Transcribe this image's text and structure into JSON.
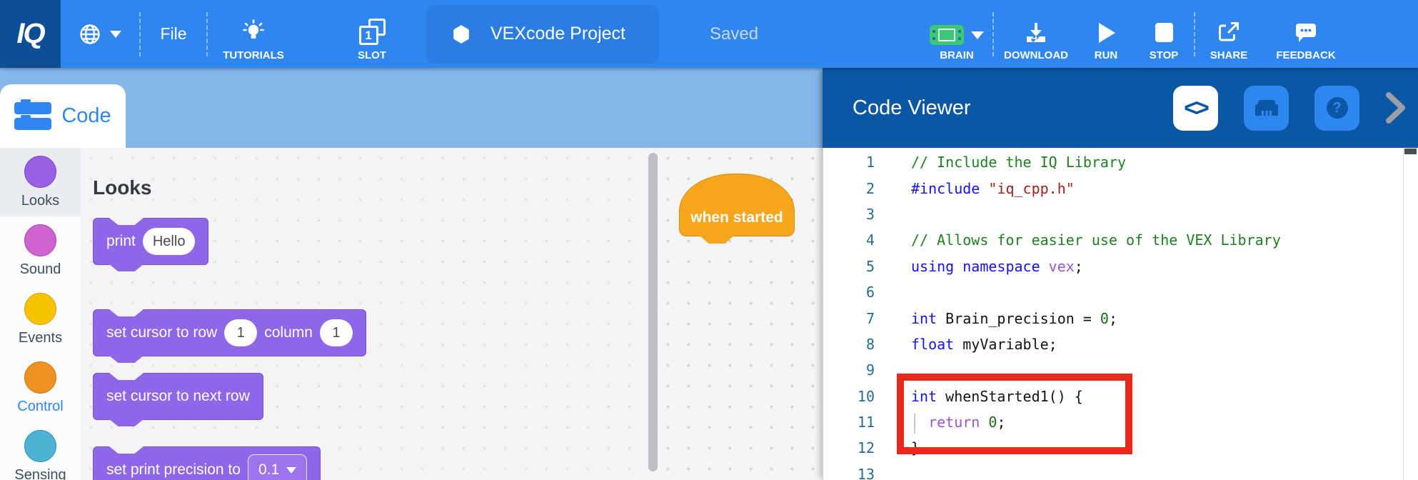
{
  "toolbar": {
    "logo": "IQ",
    "file_label": "File",
    "tutorials_label": "TUTORIALS",
    "slot_number": "1",
    "slot_label": "SLOT",
    "project_name": "VEXcode Project",
    "saved_label": "Saved",
    "brain_label": "BRAIN",
    "download_label": "DOWNLOAD",
    "run_label": "RUN",
    "stop_label": "STOP",
    "share_label": "SHARE",
    "feedback_label": "FEEDBACK"
  },
  "tabs": {
    "code_label": "Code"
  },
  "sidebar": {
    "categories": [
      {
        "label": "Looks",
        "fill": "#9b5fe6",
        "border": "#7e49c9",
        "selected": true,
        "label_color": "#3d4f5c"
      },
      {
        "label": "Sound",
        "fill": "#cf63cf",
        "border": "#b044b0",
        "selected": false,
        "label_color": "#3d4f5c"
      },
      {
        "label": "Events",
        "fill": "#f5c300",
        "border": "#d9a400",
        "selected": false,
        "label_color": "#3d4f5c"
      },
      {
        "label": "Control",
        "fill": "#f09020",
        "border": "#cc7a14",
        "selected": false,
        "label_color": "#2e86f0"
      },
      {
        "label": "Sensing",
        "fill": "#4cb3d4",
        "border": "#2e93b8",
        "selected": false,
        "label_color": "#3d4f5c"
      }
    ]
  },
  "palette": {
    "header": "Looks",
    "blocks": [
      {
        "name": "print-block",
        "segments": [
          {
            "text": "print"
          },
          {
            "input": "Hello"
          }
        ]
      },
      {
        "name": "set-cursor-row-column-block",
        "segments": [
          {
            "text": "set cursor to row"
          },
          {
            "input": "1"
          },
          {
            "text": "column"
          },
          {
            "input": "1"
          }
        ]
      },
      {
        "name": "set-cursor-next-row-block",
        "segments": [
          {
            "text": "set cursor to next row"
          }
        ]
      },
      {
        "name": "set-print-precision-block",
        "segments": [
          {
            "text": "set print precision to"
          },
          {
            "dropdown": "0.1"
          }
        ]
      }
    ]
  },
  "workspace": {
    "hat_block_label": "when started"
  },
  "code_viewer": {
    "title": "Code Viewer",
    "code_button_glyph": "<>",
    "help_glyph": "?",
    "highlighted_lines": "10-12",
    "lines": [
      {
        "n": "1",
        "tokens": [
          {
            "t": "c",
            "v": "// Include the IQ Library"
          }
        ]
      },
      {
        "n": "2",
        "tokens": [
          {
            "t": "k",
            "v": "#include "
          },
          {
            "t": "s",
            "v": "\"iq_cpp.h\""
          }
        ]
      },
      {
        "n": "3",
        "tokens": []
      },
      {
        "n": "4",
        "tokens": [
          {
            "t": "c",
            "v": "// Allows for easier use of the VEX Library"
          }
        ]
      },
      {
        "n": "5",
        "tokens": [
          {
            "t": "k",
            "v": "using namespace "
          },
          {
            "t": "p",
            "v": "vex"
          },
          {
            "t": "d",
            "v": ";"
          }
        ]
      },
      {
        "n": "6",
        "tokens": []
      },
      {
        "n": "7",
        "tokens": [
          {
            "t": "k",
            "v": "int "
          },
          {
            "t": "d",
            "v": "Brain_precision = "
          },
          {
            "t": "n",
            "v": "0"
          },
          {
            "t": "d",
            "v": ";"
          }
        ]
      },
      {
        "n": "8",
        "tokens": [
          {
            "t": "k",
            "v": "float "
          },
          {
            "t": "d",
            "v": "myVariable;"
          }
        ]
      },
      {
        "n": "9",
        "tokens": []
      },
      {
        "n": "10",
        "tokens": [
          {
            "t": "k",
            "v": "int "
          },
          {
            "t": "d",
            "v": "whenStarted1() {"
          }
        ]
      },
      {
        "n": "11",
        "tokens": [
          {
            "t": "d",
            "v": "  "
          },
          {
            "t": "p",
            "v": "return "
          },
          {
            "t": "n",
            "v": "0"
          },
          {
            "t": "d",
            "v": ";"
          }
        ]
      },
      {
        "n": "12",
        "tokens": [
          {
            "t": "d",
            "v": "}"
          }
        ]
      },
      {
        "n": "13",
        "tokens": []
      }
    ]
  },
  "colors": {
    "toolbar_blue": "#2f86ee",
    "logo_blue": "#0d4f96",
    "band_blue": "#84b6ea",
    "panel_header_blue": "#0b57a4",
    "block_purple": "#9066e8",
    "hat_orange": "#f8a51e",
    "brain_green": "#3ec873",
    "highlight_red": "#e9291d"
  }
}
